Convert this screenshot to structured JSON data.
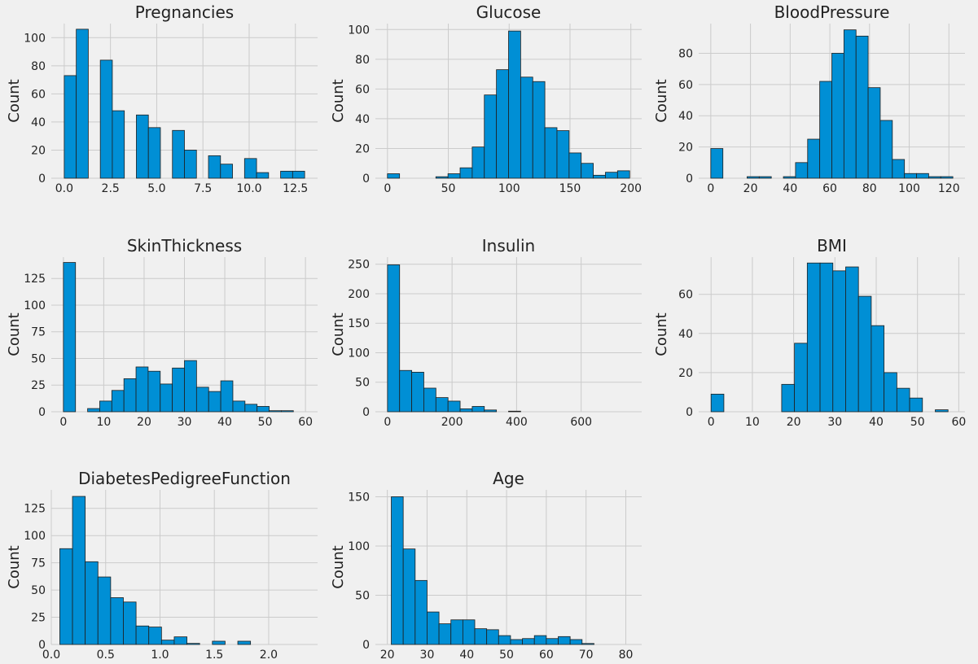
{
  "figure": {
    "background": "#f0f0f0",
    "plot_background": "#f0f0f0",
    "grid_color": "#cbcbcb",
    "bar_color": "#008fd5",
    "bar_edge": "#1f1f1f"
  },
  "chart_data": [
    {
      "type": "bar",
      "title": "Pregnancies",
      "xlabel": "",
      "ylabel": "Count",
      "xlim": [
        -0.7,
        13.7
      ],
      "ylim": [
        0,
        110
      ],
      "xticks": [
        0,
        2.5,
        5,
        7.5,
        10,
        12.5
      ],
      "xtick_labels": [
        "0.0",
        "2.5",
        "5.0",
        "7.5",
        "10.0",
        "12.5"
      ],
      "yticks": [
        0,
        20,
        40,
        60,
        80,
        100
      ],
      "ytick_labels": [
        "0",
        "20",
        "40",
        "60",
        "80",
        "100"
      ],
      "bins": [
        {
          "x0": 0.0,
          "x1": 0.65,
          "value": 73
        },
        {
          "x0": 0.65,
          "x1": 1.3,
          "value": 106
        },
        {
          "x0": 1.95,
          "x1": 2.6,
          "value": 84
        },
        {
          "x0": 2.6,
          "x1": 3.25,
          "value": 48
        },
        {
          "x0": 3.9,
          "x1": 4.55,
          "value": 45
        },
        {
          "x0": 4.55,
          "x1": 5.2,
          "value": 36
        },
        {
          "x0": 5.85,
          "x1": 6.5,
          "value": 34
        },
        {
          "x0": 6.5,
          "x1": 7.15,
          "value": 20
        },
        {
          "x0": 7.8,
          "x1": 8.45,
          "value": 16
        },
        {
          "x0": 8.45,
          "x1": 9.1,
          "value": 10
        },
        {
          "x0": 9.75,
          "x1": 10.4,
          "value": 14
        },
        {
          "x0": 10.4,
          "x1": 11.05,
          "value": 4
        },
        {
          "x0": 11.7,
          "x1": 12.35,
          "value": 5
        },
        {
          "x0": 12.35,
          "x1": 13.0,
          "value": 5
        }
      ]
    },
    {
      "type": "bar",
      "title": "Glucose",
      "xlabel": "",
      "ylabel": "Count",
      "xlim": [
        -9.9,
        208.9
      ],
      "ylim": [
        0,
        104
      ],
      "xticks": [
        0,
        50,
        100,
        150,
        200
      ],
      "xtick_labels": [
        "0",
        "50",
        "100",
        "150",
        "200"
      ],
      "yticks": [
        0,
        20,
        40,
        60,
        80,
        100
      ],
      "ytick_labels": [
        "0",
        "20",
        "40",
        "60",
        "80",
        "100"
      ],
      "bins": [
        {
          "x0": 0,
          "x1": 9.95,
          "value": 3
        },
        {
          "x0": 39.8,
          "x1": 49.75,
          "value": 1
        },
        {
          "x0": 49.75,
          "x1": 59.7,
          "value": 3
        },
        {
          "x0": 59.7,
          "x1": 69.65,
          "value": 7
        },
        {
          "x0": 69.65,
          "x1": 79.6,
          "value": 21
        },
        {
          "x0": 79.6,
          "x1": 89.55,
          "value": 56
        },
        {
          "x0": 89.55,
          "x1": 99.5,
          "value": 73
        },
        {
          "x0": 99.5,
          "x1": 109.45,
          "value": 99
        },
        {
          "x0": 109.45,
          "x1": 119.4,
          "value": 68
        },
        {
          "x0": 119.4,
          "x1": 129.35,
          "value": 65
        },
        {
          "x0": 129.35,
          "x1": 139.3,
          "value": 34
        },
        {
          "x0": 139.3,
          "x1": 149.25,
          "value": 32
        },
        {
          "x0": 149.25,
          "x1": 159.2,
          "value": 17
        },
        {
          "x0": 159.2,
          "x1": 169.15,
          "value": 10
        },
        {
          "x0": 169.15,
          "x1": 179.1,
          "value": 2
        },
        {
          "x0": 179.1,
          "x1": 189.05,
          "value": 4
        },
        {
          "x0": 189.05,
          "x1": 199.0,
          "value": 5
        }
      ]
    },
    {
      "type": "bar",
      "title": "BloodPressure",
      "xlabel": "",
      "ylabel": "Count",
      "xlim": [
        -6.1,
        128.1
      ],
      "ylim": [
        0,
        99
      ],
      "xticks": [
        0,
        20,
        40,
        60,
        80,
        100,
        120
      ],
      "xtick_labels": [
        "0",
        "20",
        "40",
        "60",
        "80",
        "100",
        "120"
      ],
      "yticks": [
        0,
        20,
        40,
        60,
        80
      ],
      "ytick_labels": [
        "0",
        "20",
        "40",
        "60",
        "80"
      ],
      "bins": [
        {
          "x0": 0,
          "x1": 6.1,
          "value": 19
        },
        {
          "x0": 18.3,
          "x1": 24.4,
          "value": 1
        },
        {
          "x0": 24.4,
          "x1": 30.5,
          "value": 1
        },
        {
          "x0": 36.6,
          "x1": 42.7,
          "value": 1
        },
        {
          "x0": 42.7,
          "x1": 48.8,
          "value": 10
        },
        {
          "x0": 48.8,
          "x1": 54.9,
          "value": 25
        },
        {
          "x0": 54.9,
          "x1": 61.0,
          "value": 62
        },
        {
          "x0": 61.0,
          "x1": 67.1,
          "value": 80
        },
        {
          "x0": 67.1,
          "x1": 73.2,
          "value": 95
        },
        {
          "x0": 73.2,
          "x1": 79.3,
          "value": 91
        },
        {
          "x0": 79.3,
          "x1": 85.4,
          "value": 58
        },
        {
          "x0": 85.4,
          "x1": 91.5,
          "value": 37
        },
        {
          "x0": 91.5,
          "x1": 97.6,
          "value": 12
        },
        {
          "x0": 97.6,
          "x1": 103.7,
          "value": 3
        },
        {
          "x0": 103.7,
          "x1": 109.8,
          "value": 3
        },
        {
          "x0": 109.8,
          "x1": 115.9,
          "value": 1
        },
        {
          "x0": 115.9,
          "x1": 122.0,
          "value": 1
        }
      ]
    },
    {
      "type": "bar",
      "title": "SkinThickness",
      "xlabel": "",
      "ylabel": "Count",
      "xlim": [
        -3.0,
        63.0
      ],
      "ylim": [
        0,
        145
      ],
      "xticks": [
        0,
        10,
        20,
        30,
        40,
        50,
        60
      ],
      "xtick_labels": [
        "0",
        "10",
        "20",
        "30",
        "40",
        "50",
        "60"
      ],
      "yticks": [
        0,
        25,
        50,
        75,
        100,
        125
      ],
      "ytick_labels": [
        "0",
        "25",
        "50",
        "75",
        "100",
        "125"
      ],
      "bins": [
        {
          "x0": 0,
          "x1": 3,
          "value": 140
        },
        {
          "x0": 6,
          "x1": 9,
          "value": 3
        },
        {
          "x0": 9,
          "x1": 12,
          "value": 10
        },
        {
          "x0": 12,
          "x1": 15,
          "value": 20
        },
        {
          "x0": 15,
          "x1": 18,
          "value": 31
        },
        {
          "x0": 18,
          "x1": 21,
          "value": 42
        },
        {
          "x0": 21,
          "x1": 24,
          "value": 38
        },
        {
          "x0": 24,
          "x1": 27,
          "value": 26
        },
        {
          "x0": 27,
          "x1": 30,
          "value": 41
        },
        {
          "x0": 30,
          "x1": 33,
          "value": 48
        },
        {
          "x0": 33,
          "x1": 36,
          "value": 23
        },
        {
          "x0": 36,
          "x1": 39,
          "value": 19
        },
        {
          "x0": 39,
          "x1": 42,
          "value": 29
        },
        {
          "x0": 42,
          "x1": 45,
          "value": 10
        },
        {
          "x0": 45,
          "x1": 48,
          "value": 7
        },
        {
          "x0": 48,
          "x1": 51,
          "value": 5
        },
        {
          "x0": 51,
          "x1": 54,
          "value": 1
        },
        {
          "x0": 54,
          "x1": 57,
          "value": 1
        },
        {
          "x0": 57,
          "x1": 60,
          "value": 0
        }
      ]
    },
    {
      "type": "bar",
      "title": "Insulin",
      "xlabel": "",
      "ylabel": "Count",
      "xlim": [
        -37.5,
        787.5
      ],
      "ylim": [
        0,
        262
      ],
      "xticks": [
        0,
        200,
        400,
        600
      ],
      "xtick_labels": [
        "0",
        "200",
        "400",
        "600"
      ],
      "yticks": [
        0,
        50,
        100,
        150,
        200,
        250
      ],
      "ytick_labels": [
        "0",
        "50",
        "100",
        "150",
        "200",
        "250"
      ],
      "bins": [
        {
          "x0": 0,
          "x1": 37.5,
          "value": 249
        },
        {
          "x0": 37.5,
          "x1": 75,
          "value": 70
        },
        {
          "x0": 75,
          "x1": 112.5,
          "value": 67
        },
        {
          "x0": 112.5,
          "x1": 150,
          "value": 40
        },
        {
          "x0": 150,
          "x1": 187.5,
          "value": 24
        },
        {
          "x0": 187.5,
          "x1": 225,
          "value": 18
        },
        {
          "x0": 225,
          "x1": 262.5,
          "value": 5
        },
        {
          "x0": 262.5,
          "x1": 300,
          "value": 9
        },
        {
          "x0": 300,
          "x1": 337.5,
          "value": 3
        },
        {
          "x0": 375,
          "x1": 412.5,
          "value": 1
        }
      ]
    },
    {
      "type": "bar",
      "title": "BMI",
      "xlabel": "",
      "ylabel": "Count",
      "xlim": [
        -3.0,
        61.5
      ],
      "ylim": [
        0,
        79
      ],
      "xticks": [
        0,
        10,
        20,
        30,
        40,
        50,
        60
      ],
      "xtick_labels": [
        "0",
        "10",
        "20",
        "30",
        "40",
        "50",
        "60"
      ],
      "yticks": [
        0,
        20,
        40,
        60
      ],
      "ytick_labels": [
        "0",
        "20",
        "40",
        "60"
      ],
      "bins": [
        {
          "x0": 0,
          "x1": 3.1,
          "value": 9
        },
        {
          "x0": 17.1,
          "x1": 20.2,
          "value": 14
        },
        {
          "x0": 20.2,
          "x1": 23.3,
          "value": 35
        },
        {
          "x0": 23.3,
          "x1": 26.4,
          "value": 76
        },
        {
          "x0": 26.4,
          "x1": 29.5,
          "value": 76
        },
        {
          "x0": 29.5,
          "x1": 32.6,
          "value": 72
        },
        {
          "x0": 32.6,
          "x1": 35.7,
          "value": 74
        },
        {
          "x0": 35.7,
          "x1": 38.8,
          "value": 59
        },
        {
          "x0": 38.8,
          "x1": 41.9,
          "value": 44
        },
        {
          "x0": 41.9,
          "x1": 45.0,
          "value": 20
        },
        {
          "x0": 45.0,
          "x1": 48.1,
          "value": 12
        },
        {
          "x0": 48.1,
          "x1": 51.2,
          "value": 7
        },
        {
          "x0": 51.2,
          "x1": 54.3,
          "value": 0
        },
        {
          "x0": 54.3,
          "x1": 57.4,
          "value": 1
        }
      ]
    },
    {
      "type": "bar",
      "title": "DiabetesPedigreeFunction",
      "xlabel": "",
      "ylabel": "Count",
      "xlim": [
        0.0,
        2.45
      ],
      "ylim": [
        0,
        142
      ],
      "xticks": [
        0.0,
        0.5,
        1.0,
        1.5,
        2.0
      ],
      "xtick_labels": [
        "0.0",
        "0.5",
        "1.0",
        "1.5",
        "2.0"
      ],
      "yticks": [
        0,
        25,
        50,
        75,
        100,
        125
      ],
      "ytick_labels": [
        "0",
        "25",
        "50",
        "75",
        "100",
        "125"
      ],
      "bins": [
        {
          "x0": 0.078,
          "x1": 0.195,
          "value": 88
        },
        {
          "x0": 0.195,
          "x1": 0.312,
          "value": 136
        },
        {
          "x0": 0.312,
          "x1": 0.429,
          "value": 76
        },
        {
          "x0": 0.429,
          "x1": 0.546,
          "value": 62
        },
        {
          "x0": 0.546,
          "x1": 0.663,
          "value": 43
        },
        {
          "x0": 0.663,
          "x1": 0.78,
          "value": 39
        },
        {
          "x0": 0.78,
          "x1": 0.897,
          "value": 17
        },
        {
          "x0": 0.897,
          "x1": 1.014,
          "value": 16
        },
        {
          "x0": 1.014,
          "x1": 1.131,
          "value": 4
        },
        {
          "x0": 1.131,
          "x1": 1.248,
          "value": 7
        },
        {
          "x0": 1.248,
          "x1": 1.365,
          "value": 1
        },
        {
          "x0": 1.482,
          "x1": 1.599,
          "value": 3
        },
        {
          "x0": 1.716,
          "x1": 1.833,
          "value": 3
        }
      ]
    },
    {
      "type": "bar",
      "title": "Age",
      "xlabel": "",
      "ylabel": "Count",
      "xlim": [
        17.0,
        84.0
      ],
      "ylim": [
        0,
        157
      ],
      "xticks": [
        20,
        30,
        40,
        50,
        60,
        70,
        80
      ],
      "xtick_labels": [
        "20",
        "30",
        "40",
        "50",
        "60",
        "70",
        "80"
      ],
      "yticks": [
        0,
        50,
        100,
        150
      ],
      "ytick_labels": [
        "0",
        "50",
        "100",
        "150"
      ],
      "bins": [
        {
          "x0": 21,
          "x1": 24,
          "value": 150
        },
        {
          "x0": 24,
          "x1": 27,
          "value": 97
        },
        {
          "x0": 27,
          "x1": 30,
          "value": 65
        },
        {
          "x0": 30,
          "x1": 33,
          "value": 33
        },
        {
          "x0": 33,
          "x1": 36,
          "value": 21
        },
        {
          "x0": 36,
          "x1": 39,
          "value": 25
        },
        {
          "x0": 39,
          "x1": 42,
          "value": 25
        },
        {
          "x0": 42,
          "x1": 45,
          "value": 16
        },
        {
          "x0": 45,
          "x1": 48,
          "value": 15
        },
        {
          "x0": 48,
          "x1": 51,
          "value": 9
        },
        {
          "x0": 51,
          "x1": 54,
          "value": 5
        },
        {
          "x0": 54,
          "x1": 57,
          "value": 6
        },
        {
          "x0": 57,
          "x1": 60,
          "value": 9
        },
        {
          "x0": 60,
          "x1": 63,
          "value": 6
        },
        {
          "x0": 63,
          "x1": 66,
          "value": 8
        },
        {
          "x0": 66,
          "x1": 69,
          "value": 5
        },
        {
          "x0": 69,
          "x1": 72,
          "value": 1
        }
      ]
    }
  ]
}
